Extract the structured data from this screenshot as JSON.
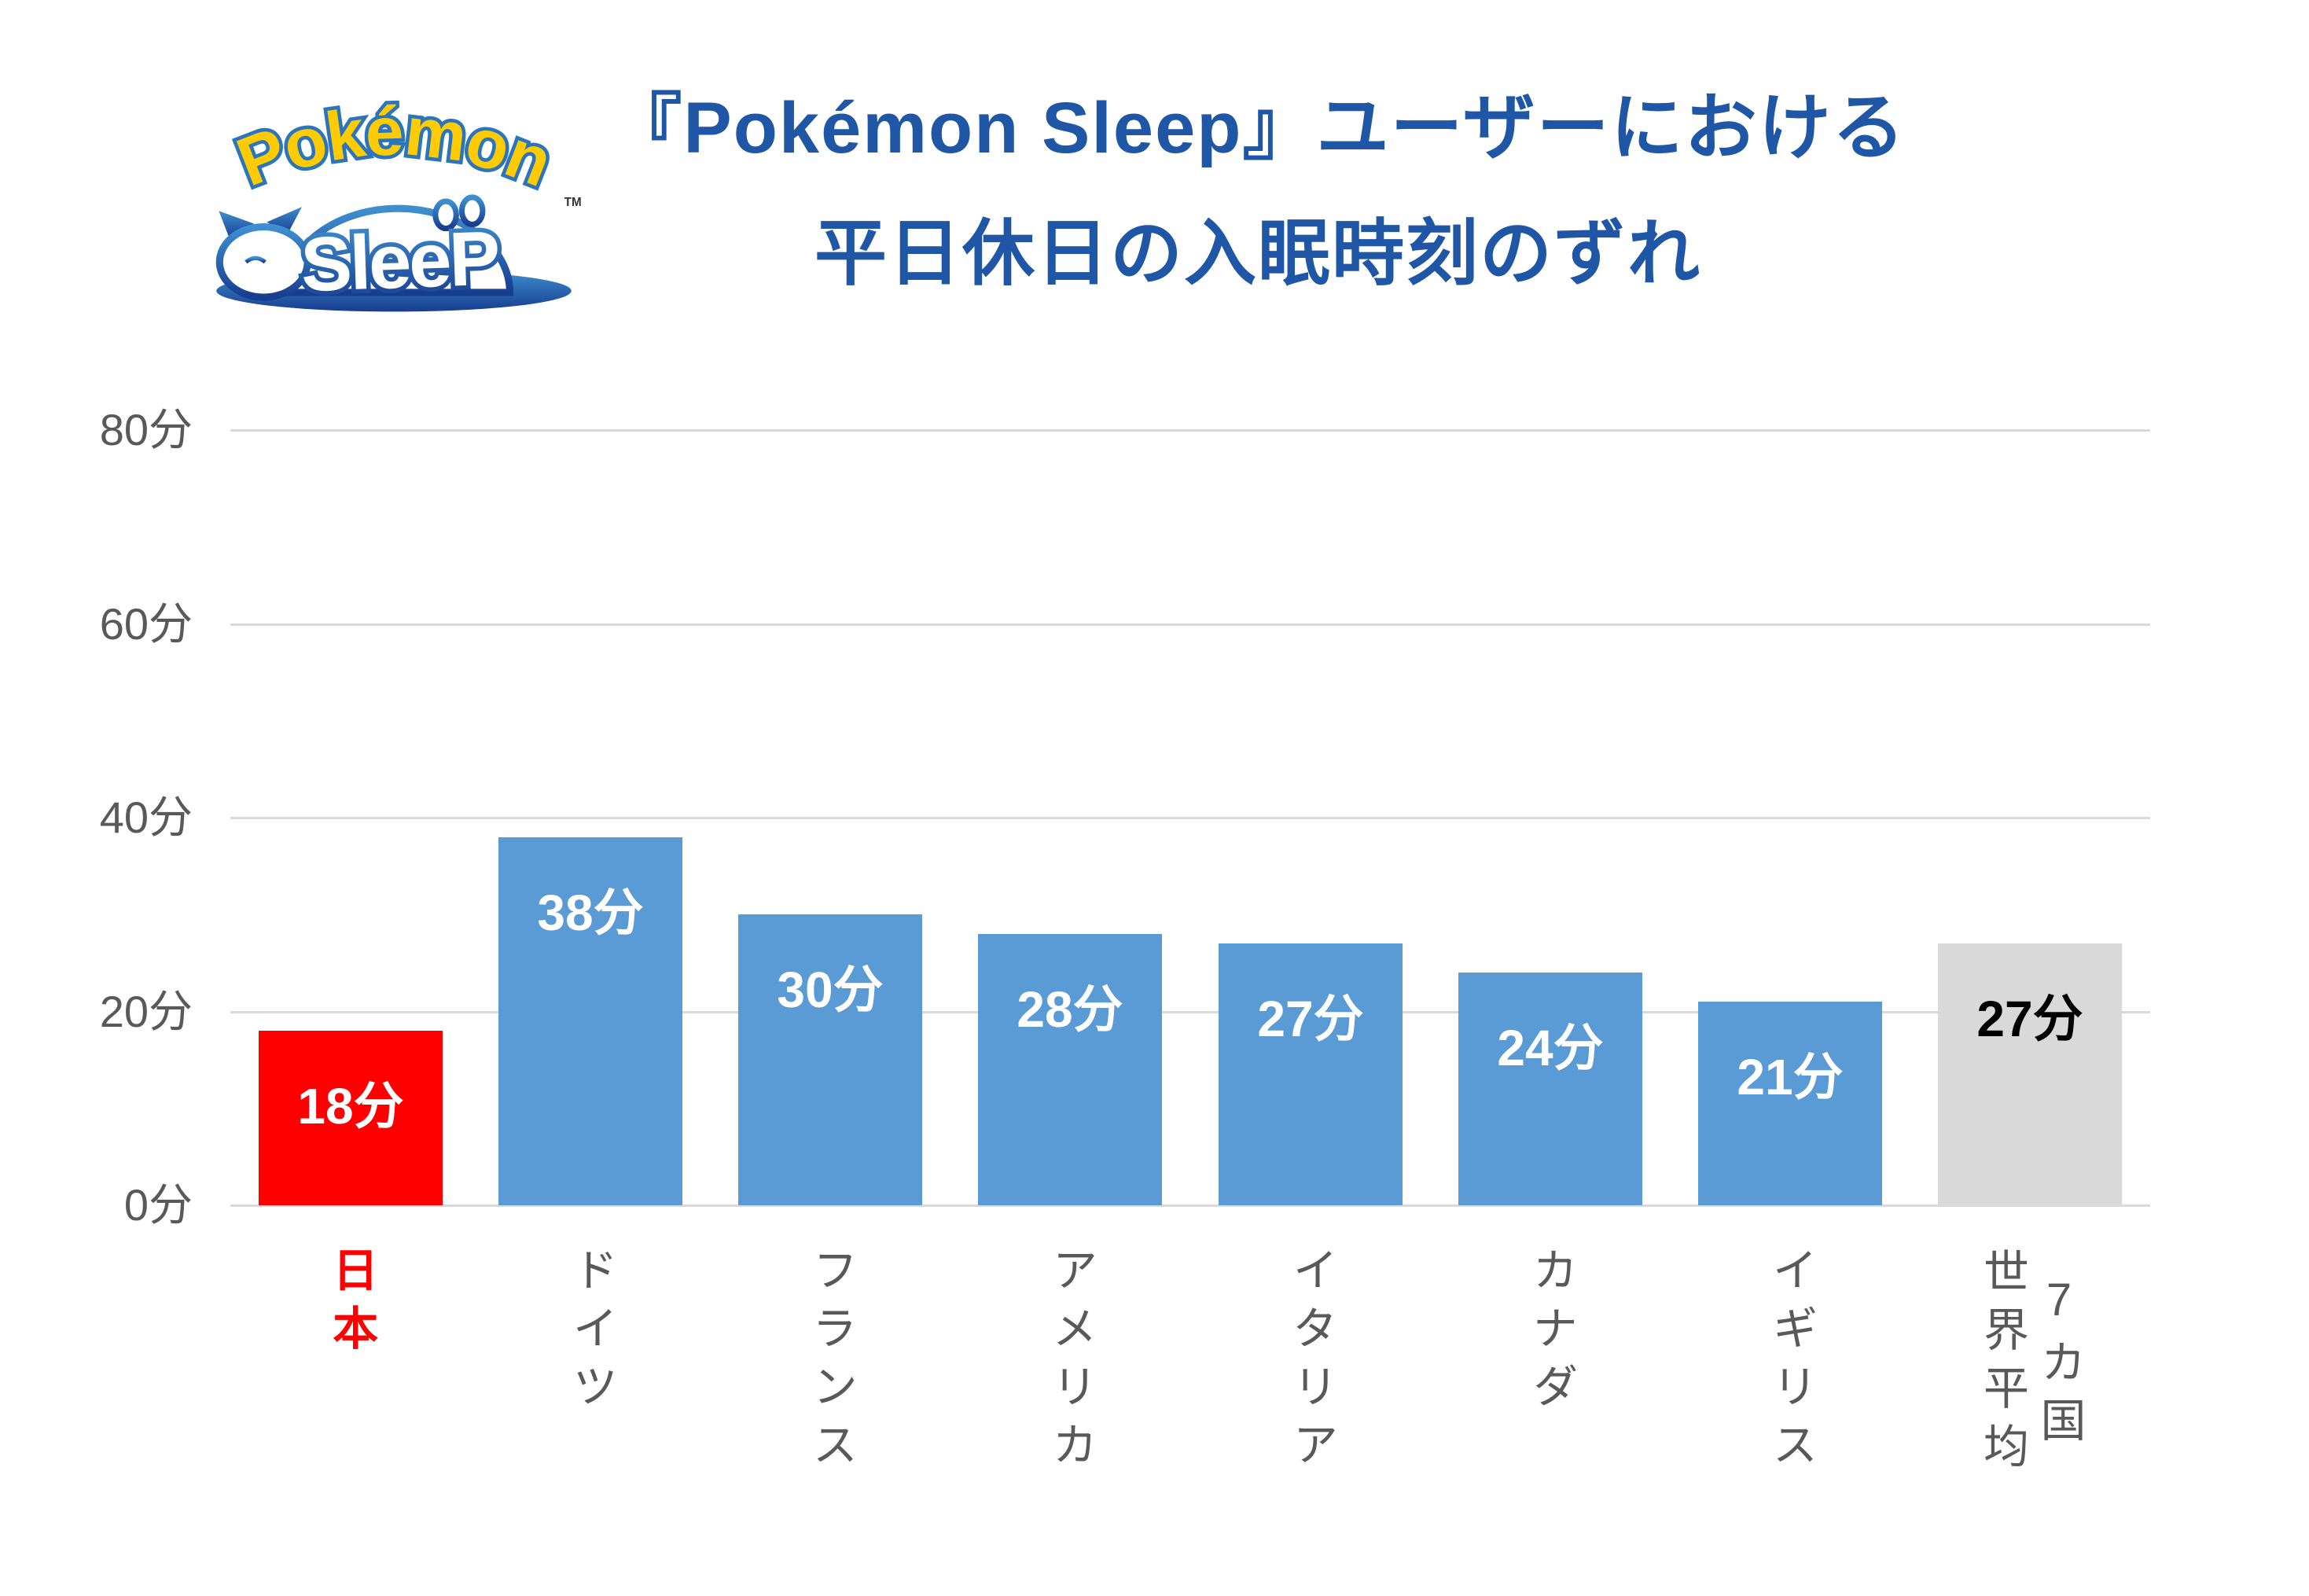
{
  "page": {
    "background": "#FFFFFF"
  },
  "logo": {
    "pokemon": "Pokémon",
    "sleep": "SleeP",
    "tm": "TM",
    "colors": {
      "pokemon_fill": "#FFCB05",
      "pokemon_outline": "#2A75BB",
      "body_gradient_top": "#3F8FD0",
      "body_gradient_bottom": "#173D8F"
    }
  },
  "title": {
    "line1": "『Pokémon Sleep』ユーザーにおける",
    "line2": "平日休日の入眠時刻のずれ",
    "color": "#1F56A5"
  },
  "chart_data": {
    "type": "bar",
    "title": "『Pokémon Sleep』ユーザーにおける平日休日の入眠時刻のずれ",
    "unit": "分",
    "categories": [
      "日本",
      "ドイツ",
      "フランス",
      "アメリカ",
      "イタリア",
      "カナダ",
      "イギリス",
      "7カ国\n世界平均"
    ],
    "slugs": [
      "japan",
      "germany",
      "france",
      "usa",
      "italy",
      "canada",
      "uk",
      "world-average-7-countries"
    ],
    "values": [
      18,
      38,
      30,
      28,
      27,
      24,
      21,
      27
    ],
    "bar_labels": [
      "18分",
      "38分",
      "30分",
      "28分",
      "27分",
      "24分",
      "21分",
      "27分"
    ],
    "bar_colors": [
      "#FF0000",
      "#5B9BD5",
      "#5B9BD5",
      "#5B9BD5",
      "#5B9BD5",
      "#5B9BD5",
      "#5B9BD5",
      "#D9D9D9"
    ],
    "value_label_colors": [
      "#FFFFFF",
      "#FFFFFF",
      "#FFFFFF",
      "#FFFFFF",
      "#FFFFFF",
      "#FFFFFF",
      "#FFFFFF",
      "#000000"
    ],
    "category_label_colors": [
      "#FF0000",
      "#595959",
      "#595959",
      "#595959",
      "#595959",
      "#595959",
      "#595959",
      "#595959"
    ],
    "category_label_bold": [
      true,
      false,
      false,
      false,
      false,
      false,
      false,
      false
    ],
    "yticks": [
      {
        "value": 0,
        "label": "0分"
      },
      {
        "value": 20,
        "label": "20分"
      },
      {
        "value": 40,
        "label": "40分"
      },
      {
        "value": 60,
        "label": "60分"
      },
      {
        "value": 80,
        "label": "80分"
      }
    ],
    "ylim": [
      0,
      80
    ],
    "grid": true,
    "gridline_color": "#D9D9D9",
    "axis_text_color": "#595959",
    "legend": "none"
  }
}
